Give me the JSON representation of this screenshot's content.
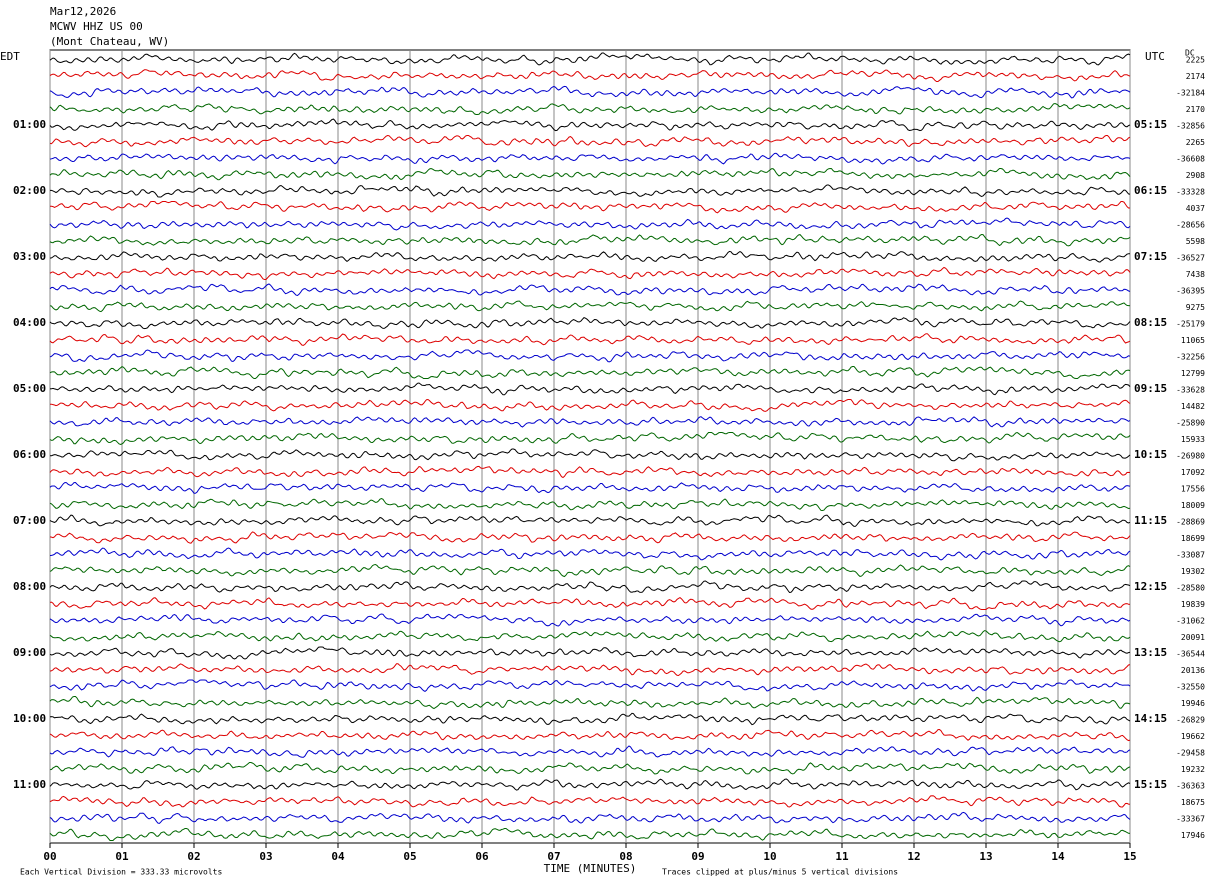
{
  "header": [
    "Mar12,2026",
    "MCWV HHZ US 00",
    "(Mont Chateau, WV)"
  ],
  "left_label": "EDT",
  "right_label": "UTC",
  "dc_label": "DC",
  "edt_times": [
    "01:00",
    "02:00",
    "03:00",
    "04:00",
    "05:00",
    "06:00",
    "07:00",
    "08:00",
    "09:00",
    "10:00",
    "11:00"
  ],
  "utc_times": [
    "05:15",
    "06:15",
    "07:15",
    "08:15",
    "09:15",
    "10:15",
    "11:15",
    "12:15",
    "13:15",
    "14:15",
    "15:15"
  ],
  "dc_values": [
    "2225",
    "2174",
    "-32184",
    "2170",
    "-32856",
    "2265",
    "-36608",
    "2908",
    "-33328",
    "4037",
    "-28656",
    "5598",
    "-36527",
    "7438",
    "-36395",
    "9275",
    "-25179",
    "11065",
    "-32256",
    "12799",
    "-33628",
    "14482",
    "-25890",
    "15933",
    "-26980",
    "17092",
    "17556",
    "18009",
    "-28869",
    "18699",
    "-33087",
    "19302",
    "-28580",
    "19839",
    "-31062",
    "20091",
    "-36544",
    "20136",
    "-32550",
    "19946",
    "-26829",
    "19662",
    "-29458",
    "19232",
    "-36363",
    "18675",
    "-33367",
    "17946"
  ],
  "x_ticks": [
    "00",
    "01",
    "02",
    "03",
    "04",
    "05",
    "06",
    "07",
    "08",
    "09",
    "10",
    "11",
    "12",
    "13",
    "14",
    "15"
  ],
  "x_axis_label": "TIME (MINUTES)",
  "footer_left": "Each Vertical Division =  333.33 microvolts",
  "footer_right": "Traces clipped at plus/minus 5 vertical divisions",
  "trace_colors": [
    "#000000",
    "#dd0000",
    "#0000cc",
    "#006600"
  ]
}
